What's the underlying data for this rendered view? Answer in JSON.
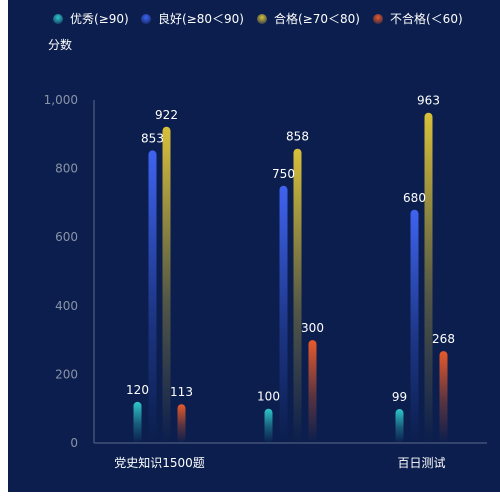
{
  "chart_data": {
    "type": "bar",
    "ylabel": "分数",
    "ylim": [
      0,
      1000
    ],
    "yticks": [
      0,
      200,
      400,
      600,
      800,
      1000
    ],
    "ytick_labels": [
      "0",
      "200",
      "400",
      "600",
      "800",
      "1,000"
    ],
    "categories": [
      "党史知识1500题",
      "",
      "百日测试"
    ],
    "series": [
      {
        "name": "优秀(≥90)",
        "values": [
          120,
          100,
          99
        ],
        "color": "#2ec7c9"
      },
      {
        "name": "良好(≥80＜90)",
        "values": [
          853,
          750,
          680
        ],
        "color": "#3f63f0"
      },
      {
        "name": "合格(≥70＜80)",
        "values": [
          922,
          858,
          963
        ],
        "color": "#d8c03a"
      },
      {
        "name": "不合格(＜60)",
        "values": [
          113,
          300,
          268
        ],
        "color": "#e85a2a"
      }
    ],
    "legend_position": "top",
    "grid": false
  }
}
